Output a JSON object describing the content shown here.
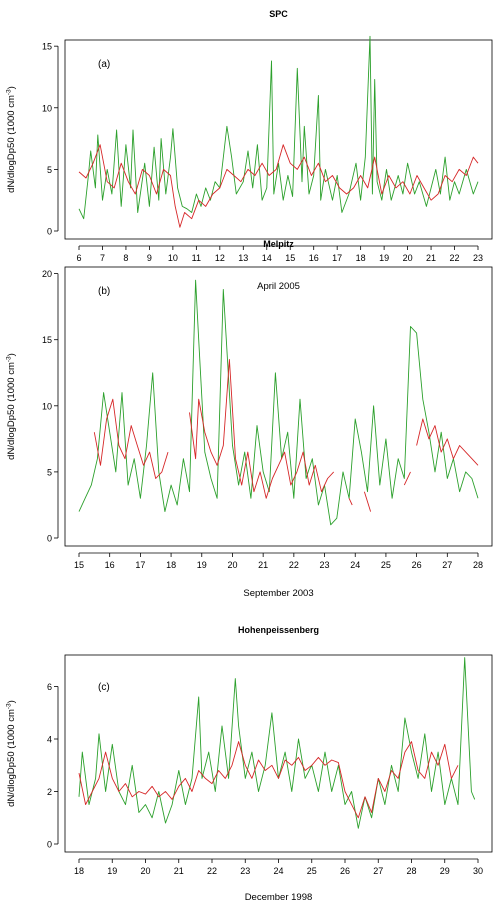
{
  "figure": {
    "colors": {
      "green": "#2ca02c",
      "red": "#d62728"
    }
  },
  "chart_data": [
    {
      "type": "line",
      "title": "SPC",
      "panel_label": "(a)",
      "ylabel": "dN/dlogDp50 (1000 cm",
      "ylabel_sup": "-3",
      "ylabel_tail": ")",
      "xlabel": "April 2005",
      "xlim": [
        6,
        23
      ],
      "ylim": [
        0,
        15.5
      ],
      "xticks": [
        6,
        7,
        8,
        9,
        10,
        11,
        12,
        13,
        14,
        15,
        16,
        17,
        18,
        19,
        20,
        21,
        22,
        23
      ],
      "yticks": [
        0,
        5,
        10,
        15
      ],
      "series": [
        {
          "color": "#2ca02c",
          "x": [
            6.0,
            6.2,
            6.4,
            6.5,
            6.7,
            6.8,
            7.0,
            7.2,
            7.4,
            7.6,
            7.8,
            8.0,
            8.2,
            8.3,
            8.5,
            8.8,
            9.0,
            9.2,
            9.4,
            9.5,
            9.7,
            9.9,
            10.0,
            10.2,
            10.4,
            10.6,
            10.8,
            11.0,
            11.2,
            11.4,
            11.6,
            11.8,
            12.0,
            12.3,
            12.5,
            12.7,
            13.0,
            13.2,
            13.4,
            13.6,
            13.8,
            14.0,
            14.2,
            14.3,
            14.5,
            14.7,
            14.9,
            15.1,
            15.3,
            15.5,
            15.6,
            15.8,
            16.0,
            16.2,
            16.3,
            16.5,
            16.8,
            17.0,
            17.2,
            17.5,
            17.8,
            18.0,
            18.2,
            18.4,
            18.5,
            18.6,
            18.7,
            18.9,
            19.1,
            19.3,
            19.6,
            19.8,
            20.0,
            20.3,
            20.5,
            20.8,
            21.0,
            21.2,
            21.4,
            21.6,
            21.8,
            22.0,
            22.2,
            22.5,
            22.8,
            23.0
          ],
          "y": [
            1.8,
            1.0,
            4.5,
            6.5,
            3.5,
            7.8,
            2.5,
            5.0,
            3.0,
            8.2,
            2.0,
            7.0,
            3.5,
            8.2,
            1.5,
            5.5,
            2.0,
            6.8,
            2.5,
            7.5,
            3.0,
            6.0,
            8.3,
            3.5,
            2.0,
            1.8,
            1.5,
            3.0,
            2.0,
            3.5,
            2.5,
            4.0,
            3.5,
            8.5,
            6.0,
            3.0,
            4.0,
            6.5,
            3.5,
            7.0,
            2.5,
            3.5,
            13.8,
            3.0,
            5.5,
            2.5,
            4.5,
            2.8,
            13.2,
            4.0,
            8.5,
            3.0,
            4.5,
            11.0,
            2.5,
            5.0,
            2.5,
            4.5,
            1.5,
            3.0,
            5.5,
            2.5,
            6.0,
            15.8,
            3.0,
            12.3,
            4.0,
            2.5,
            5.0,
            2.5,
            4.5,
            3.0,
            5.5,
            3.0,
            4.0,
            2.0,
            3.5,
            5.0,
            3.0,
            6.0,
            2.5,
            4.0,
            3.0,
            5.0,
            3.0,
            4.0
          ]
        },
        {
          "color": "#d62728",
          "x": [
            6.0,
            6.3,
            6.6,
            6.9,
            7.2,
            7.5,
            7.8,
            8.1,
            8.4,
            8.7,
            9.0,
            9.3,
            9.6,
            9.9,
            10.1,
            10.3,
            10.5,
            10.8,
            11.1,
            11.4,
            11.7,
            12.0,
            12.3,
            12.6,
            12.9,
            13.2,
            13.5,
            13.8,
            14.1,
            14.4,
            14.7,
            15.0,
            15.3,
            15.6,
            15.9,
            16.2,
            16.5,
            16.8,
            17.1,
            17.4,
            17.7,
            18.0,
            18.3,
            18.6,
            18.9,
            19.2,
            19.5,
            19.8,
            20.1,
            20.4,
            20.7,
            21.0,
            21.3,
            21.6,
            21.9,
            22.2,
            22.5,
            22.8,
            23.0
          ],
          "y": [
            4.8,
            4.3,
            5.5,
            7.0,
            4.0,
            3.5,
            5.5,
            4.0,
            3.0,
            5.0,
            4.5,
            3.0,
            5.0,
            4.5,
            2.0,
            0.3,
            1.5,
            1.0,
            2.5,
            2.0,
            3.0,
            3.5,
            5.0,
            4.5,
            4.0,
            5.0,
            4.5,
            5.5,
            4.5,
            5.0,
            7.0,
            5.5,
            5.0,
            6.0,
            4.5,
            5.5,
            4.0,
            4.5,
            3.5,
            3.0,
            3.5,
            4.5,
            3.5,
            6.0,
            3.0,
            4.5,
            3.5,
            4.0,
            3.0,
            4.5,
            3.5,
            2.5,
            3.0,
            4.5,
            4.0,
            5.0,
            4.5,
            6.0,
            5.5
          ]
        }
      ]
    },
    {
      "type": "line",
      "title": "Melpitz",
      "panel_label": "(b)",
      "ylabel": "dN/dlogDp50 (1000 cm",
      "ylabel_sup": "-3",
      "ylabel_tail": ")",
      "xlabel": "September 2003",
      "xlim": [
        15,
        28
      ],
      "ylim": [
        0,
        20.5
      ],
      "xticks": [
        15,
        16,
        17,
        18,
        19,
        20,
        21,
        22,
        23,
        24,
        25,
        26,
        27,
        28
      ],
      "yticks": [
        0,
        5,
        10,
        15,
        20
      ],
      "series": [
        {
          "color": "#2ca02c",
          "x": [
            15.0,
            15.2,
            15.4,
            15.6,
            15.8,
            16.0,
            16.2,
            16.4,
            16.6,
            16.8,
            17.0,
            17.2,
            17.4,
            17.6,
            17.8,
            18.0,
            18.2,
            18.4,
            18.6,
            18.8,
            18.9,
            19.1,
            19.3,
            19.5,
            19.7,
            19.8,
            20.0,
            20.2,
            20.4,
            20.6,
            20.8,
            21.0,
            21.2,
            21.4,
            21.6,
            21.8,
            22.0,
            22.2,
            22.4,
            22.6,
            22.8,
            23.0,
            23.2,
            23.4,
            23.6,
            23.8,
            24.0,
            24.2,
            24.4,
            24.6,
            24.8,
            25.0,
            25.2,
            25.4,
            25.6,
            25.8,
            26.0,
            26.2,
            26.4,
            26.6,
            26.8,
            27.0,
            27.2,
            27.4,
            27.6,
            27.8,
            28.0
          ],
          "y": [
            2.0,
            3.0,
            4.0,
            6.0,
            11.0,
            8.0,
            5.0,
            11.0,
            4.0,
            6.0,
            3.0,
            7.0,
            12.5,
            5.0,
            2.0,
            4.0,
            2.5,
            6.0,
            3.5,
            19.5,
            15.0,
            6.5,
            4.5,
            3.0,
            18.8,
            15.0,
            7.0,
            4.0,
            6.5,
            3.0,
            8.5,
            5.0,
            3.5,
            12.5,
            6.0,
            8.0,
            3.0,
            10.5,
            4.5,
            6.0,
            2.5,
            4.0,
            1.0,
            1.5,
            5.0,
            3.0,
            9.0,
            6.5,
            3.5,
            10.0,
            4.0,
            7.5,
            3.0,
            6.0,
            4.5,
            16.0,
            15.5,
            10.5,
            8.0,
            5.0,
            8.0,
            4.5,
            6.0,
            3.5,
            5.0,
            4.5,
            3.0
          ]
        },
        {
          "color": "#d62728",
          "x": [
            15.5,
            15.7,
            15.9,
            16.1,
            16.3,
            16.5,
            16.7,
            16.9,
            17.1,
            17.3,
            17.5,
            17.7,
            17.9,
            null,
            18.6,
            18.8,
            18.9,
            19.1,
            19.3,
            19.5,
            19.7,
            19.9,
            20.1,
            20.3,
            20.5,
            20.7,
            20.9,
            21.1,
            21.3,
            21.5,
            21.7,
            21.9,
            22.1,
            22.3,
            22.5,
            22.7,
            22.9,
            23.1,
            23.3,
            null,
            23.8,
            23.9,
            null,
            24.3,
            24.5,
            null,
            25.6,
            25.8,
            null,
            26.0,
            26.2,
            26.4,
            26.6,
            26.8,
            27.0,
            27.2,
            27.4,
            27.6,
            27.8,
            28.0
          ],
          "y": [
            8.0,
            5.5,
            9.0,
            10.5,
            7.0,
            6.0,
            8.5,
            7.0,
            5.5,
            6.5,
            4.5,
            5.0,
            6.5,
            null,
            9.5,
            6.0,
            10.5,
            8.0,
            6.5,
            5.5,
            7.0,
            13.5,
            6.0,
            4.0,
            6.5,
            3.5,
            5.0,
            3.0,
            4.5,
            5.5,
            6.5,
            4.0,
            5.0,
            6.5,
            4.0,
            5.5,
            3.5,
            4.5,
            5.0,
            null,
            3.0,
            2.5,
            null,
            3.5,
            2.0,
            null,
            4.0,
            5.0,
            null,
            7.0,
            9.0,
            7.5,
            8.5,
            6.5,
            7.5,
            6.0,
            7.0,
            6.5,
            6.0,
            5.5
          ]
        }
      ]
    },
    {
      "type": "line",
      "title": "Hohenpeissenberg",
      "panel_label": "(c)",
      "ylabel": "dN/dlogDp50 (1000 cm",
      "ylabel_sup": "-3",
      "ylabel_tail": ")",
      "xlabel": "December 1998",
      "xlim": [
        18,
        30
      ],
      "ylim": [
        0,
        7.2
      ],
      "xticks": [
        18,
        19,
        20,
        21,
        22,
        23,
        24,
        25,
        26,
        27,
        28,
        29,
        30
      ],
      "yticks": [
        0,
        2,
        4,
        6
      ],
      "series": [
        {
          "color": "#2ca02c",
          "x": [
            18.0,
            18.1,
            18.3,
            18.5,
            18.6,
            18.8,
            19.0,
            19.2,
            19.4,
            19.6,
            19.8,
            20.0,
            20.2,
            20.4,
            20.6,
            20.8,
            21.0,
            21.2,
            21.4,
            21.6,
            21.7,
            21.9,
            22.1,
            22.3,
            22.5,
            22.7,
            22.8,
            23.0,
            23.2,
            23.4,
            23.6,
            23.8,
            24.0,
            24.2,
            24.4,
            24.6,
            24.8,
            25.0,
            25.2,
            25.4,
            25.6,
            25.8,
            26.0,
            26.2,
            26.4,
            26.6,
            26.8,
            27.0,
            27.2,
            27.4,
            27.6,
            27.8,
            28.0,
            28.2,
            28.4,
            28.6,
            28.8,
            29.0,
            29.2,
            29.4,
            29.6,
            29.8,
            29.9
          ],
          "y": [
            1.8,
            3.5,
            1.5,
            2.5,
            4.2,
            2.0,
            3.8,
            2.0,
            1.5,
            3.0,
            1.2,
            1.5,
            1.0,
            2.0,
            0.8,
            1.5,
            2.8,
            1.5,
            2.5,
            5.6,
            2.5,
            3.5,
            2.0,
            4.5,
            2.5,
            6.3,
            4.5,
            2.5,
            3.5,
            2.0,
            3.0,
            5.0,
            2.5,
            3.5,
            2.0,
            4.0,
            2.5,
            3.0,
            2.0,
            3.5,
            2.0,
            3.0,
            1.5,
            2.0,
            0.6,
            1.8,
            1.0,
            2.5,
            1.5,
            3.0,
            2.0,
            4.8,
            3.5,
            2.5,
            4.2,
            2.0,
            3.5,
            1.5,
            2.5,
            1.5,
            7.1,
            2.0,
            1.7
          ]
        },
        {
          "color": "#d62728",
          "x": [
            18.0,
            18.2,
            18.4,
            18.6,
            18.8,
            19.0,
            19.2,
            19.4,
            19.6,
            19.8,
            20.0,
            20.2,
            20.4,
            20.6,
            20.8,
            21.0,
            21.2,
            21.4,
            21.6,
            21.8,
            22.0,
            22.2,
            22.4,
            22.6,
            22.8,
            23.0,
            23.2,
            23.4,
            23.6,
            23.8,
            24.0,
            24.2,
            24.4,
            24.6,
            24.8,
            25.0,
            25.2,
            25.4,
            25.6,
            25.8,
            26.0,
            26.2,
            26.4,
            26.6,
            26.8,
            27.0,
            27.2,
            27.4,
            27.6,
            27.8,
            28.0,
            28.2,
            28.4,
            28.6,
            28.8,
            29.0,
            29.2,
            29.4
          ],
          "y": [
            2.7,
            1.5,
            2.0,
            2.5,
            3.5,
            2.5,
            2.0,
            2.3,
            1.8,
            2.0,
            1.9,
            2.2,
            1.8,
            2.0,
            1.7,
            2.2,
            2.5,
            2.0,
            2.8,
            2.5,
            2.3,
            2.8,
            2.5,
            3.0,
            3.9,
            3.0,
            2.5,
            3.2,
            2.8,
            3.0,
            2.5,
            3.2,
            3.0,
            3.3,
            2.8,
            3.0,
            3.3,
            3.0,
            3.2,
            3.1,
            2.0,
            1.5,
            1.0,
            1.8,
            1.2,
            2.5,
            2.0,
            2.8,
            2.5,
            3.5,
            3.9,
            2.8,
            2.5,
            3.5,
            3.0,
            3.8,
            2.5,
            3.0
          ]
        }
      ]
    }
  ]
}
